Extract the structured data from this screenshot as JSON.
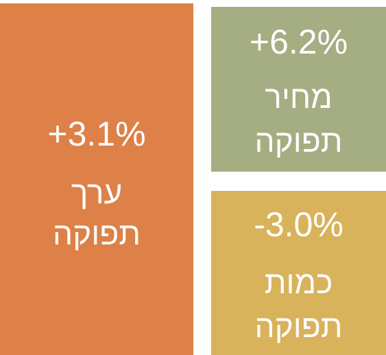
{
  "tiles": [
    {
      "value": "+3.1%",
      "label_lines": [
        "ערך",
        "תפוקה"
      ],
      "color": "#dd8148"
    },
    {
      "value": "+6.2%",
      "label_lines": [
        "מחיר",
        "תפוקה"
      ],
      "color": "#a5ad82"
    },
    {
      "value": "-3.0%",
      "label_lines": [
        "כמות",
        "תפוקה"
      ],
      "color": "#d9b25c"
    }
  ]
}
